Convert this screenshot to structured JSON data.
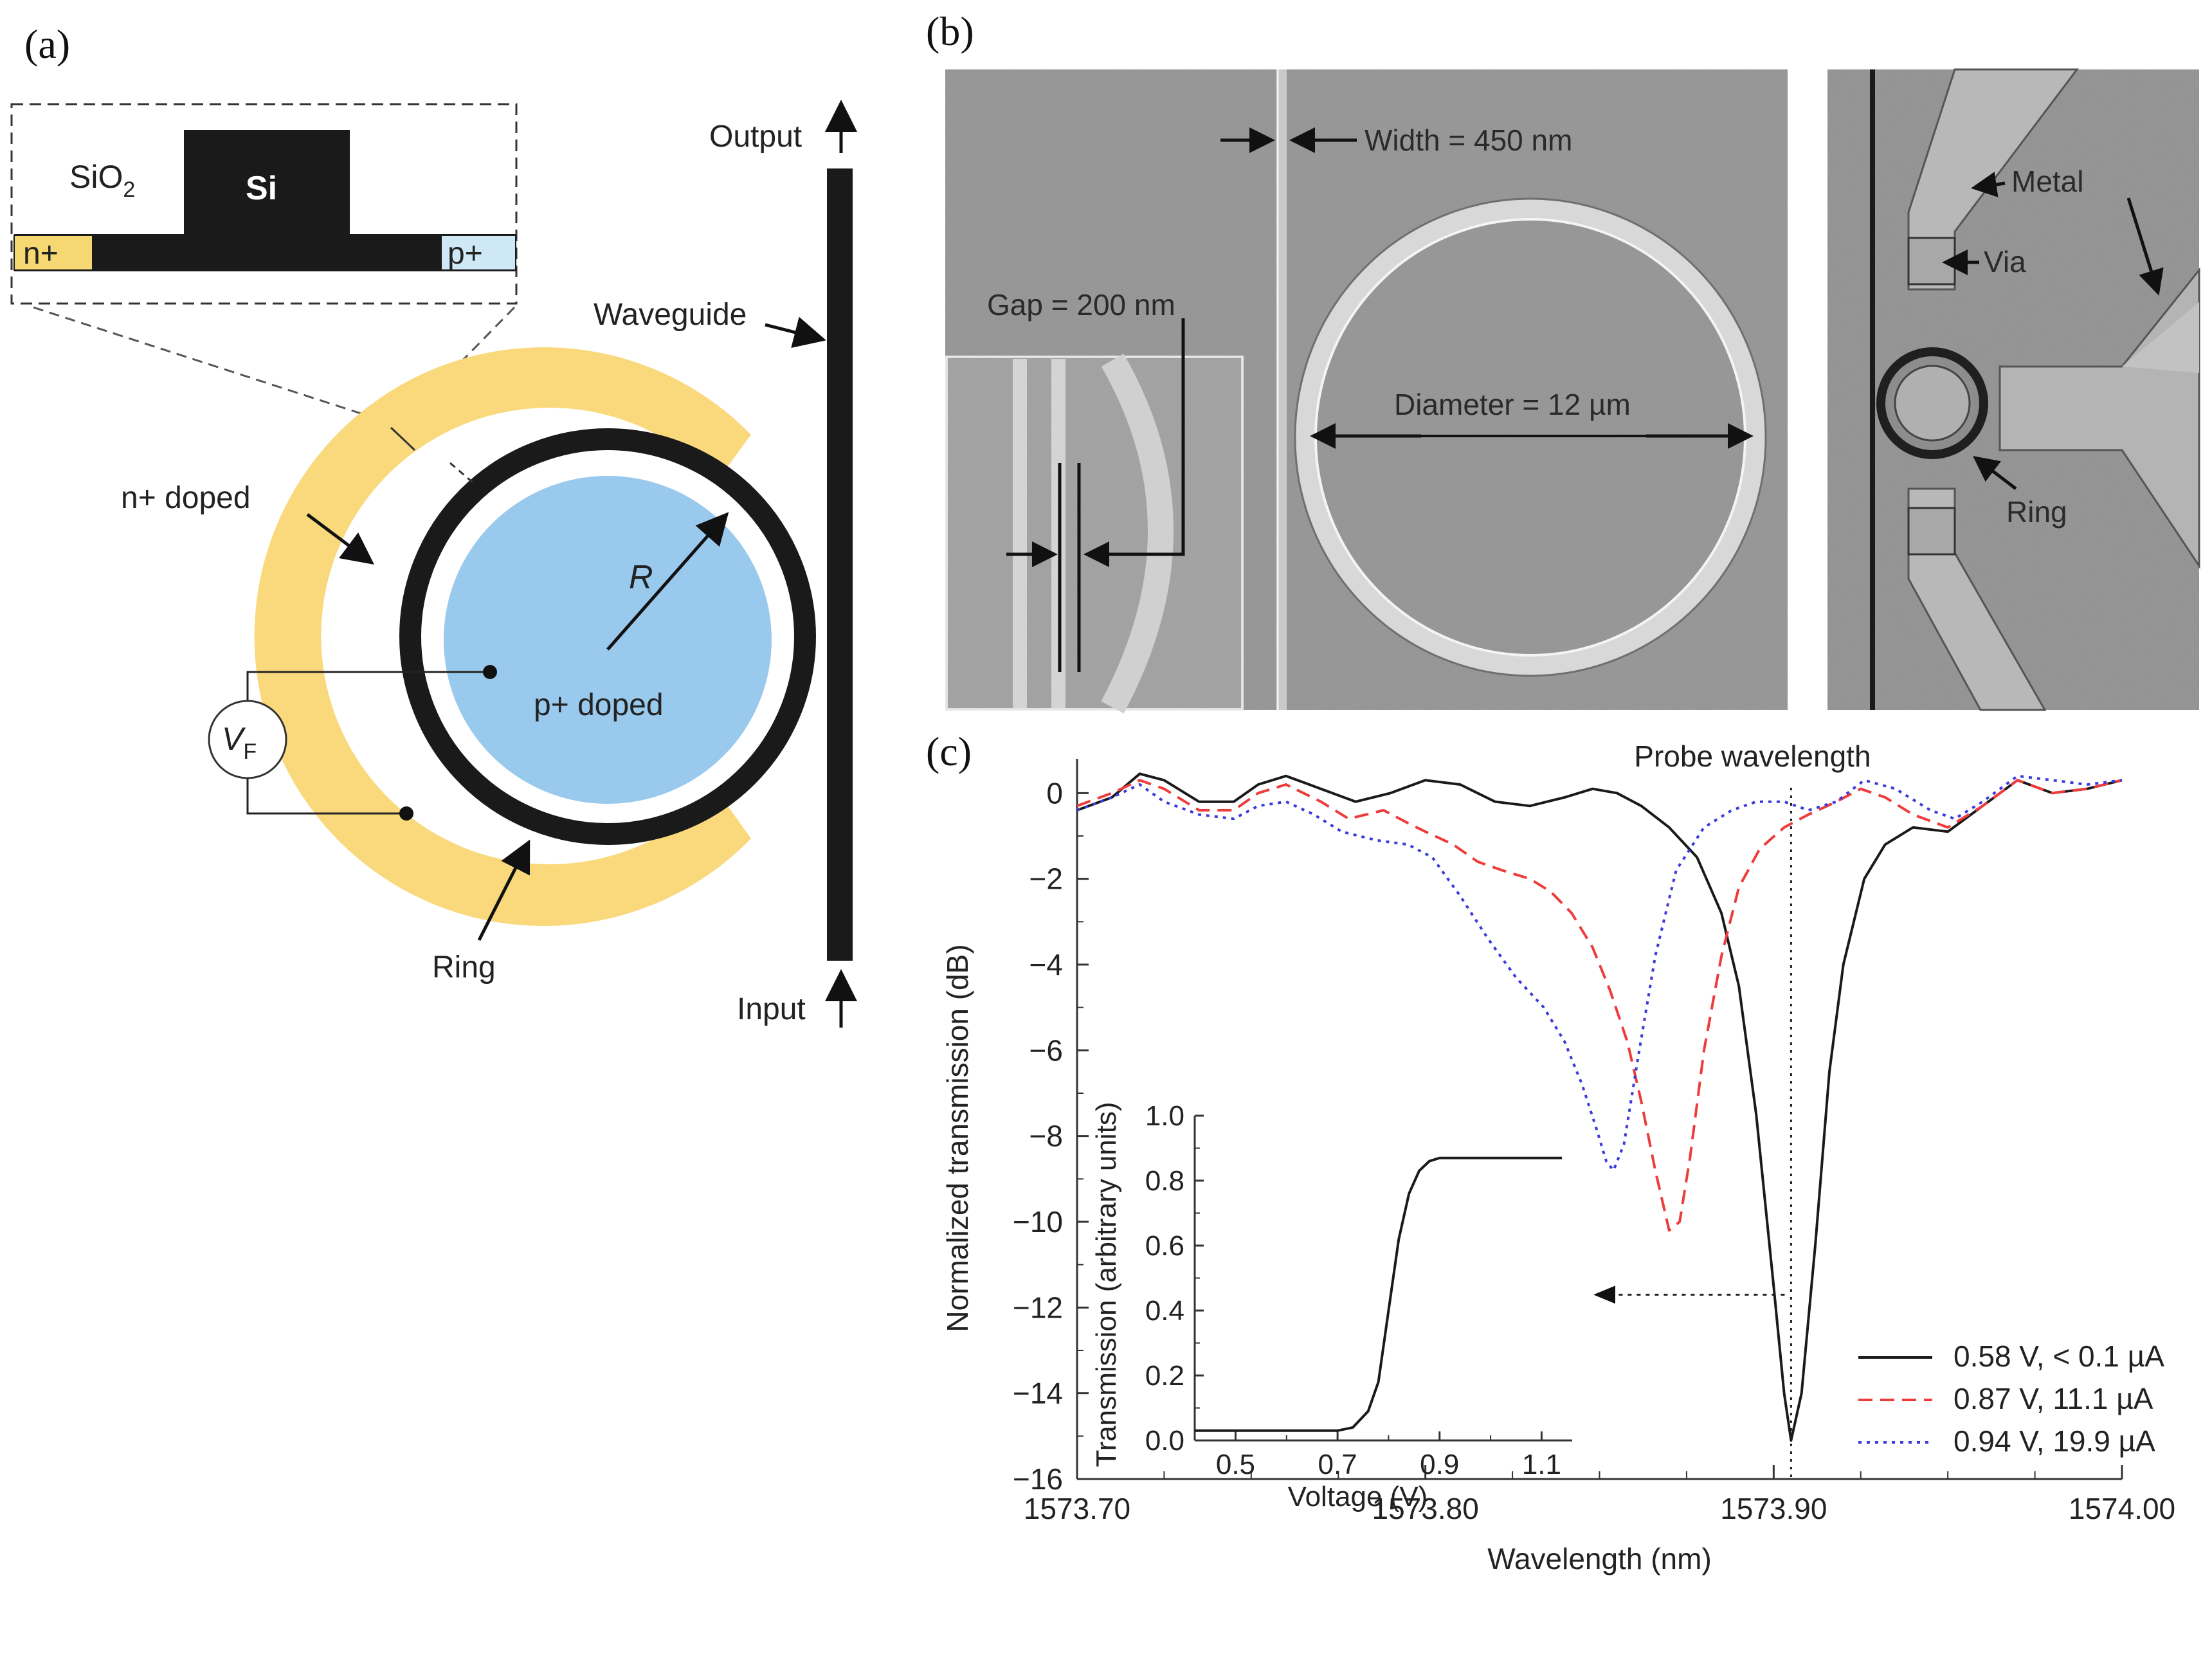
{
  "panels": {
    "a": "(a)",
    "b": "(b)",
    "c": "(c)"
  },
  "panel_a": {
    "cross_section": {
      "sio2_prefix": "SiO",
      "sio2_subscript": "2",
      "si": "Si",
      "n_plus": "n+",
      "p_plus": "p+"
    },
    "labels": {
      "output": "Output",
      "input": "Input",
      "waveguide": "Waveguide",
      "n_doped": "n+ doped",
      "p_doped": "p+ doped",
      "radius": "R",
      "ring": "Ring",
      "voltage_main": "V",
      "voltage_sub": "F"
    },
    "colors": {
      "n_doped": "#f9d97c",
      "p_doped": "#99c9ec",
      "silicon": "#1a1a1a",
      "p_plus_box": "#cfe8f6",
      "n_plus_box": "#f6d873"
    }
  },
  "panel_b": {
    "labels": {
      "width": "Width = 450 nm",
      "gap": "Gap = 200 nm",
      "diameter": "Diameter = 12 µm",
      "metal": "Metal",
      "via": "Via",
      "ring": "Ring"
    }
  },
  "chart_data": {
    "type": "line",
    "xlabel": "Wavelength (nm)",
    "ylabel": "Normalized transmission (dB)",
    "xlim": [
      1573.7,
      1574.0
    ],
    "ylim": [
      -16,
      0.8
    ],
    "x_ticks": [
      "1573.70",
      "1573.80",
      "1573.90",
      "1574.00"
    ],
    "y_ticks": [
      "0",
      "−2",
      "−4",
      "−6",
      "−8",
      "−10",
      "−12",
      "−14",
      "−16"
    ],
    "annotation": "Probe wavelength",
    "probe_wavelength": 1573.905,
    "legend_position": "bottom-right",
    "series": [
      {
        "name": "0.58 V, < 0.1 µA",
        "color": "#1a1a1a",
        "style": "solid",
        "points": [
          [
            1573.7,
            -0.4
          ],
          [
            1573.71,
            -0.1
          ],
          [
            1573.718,
            0.45
          ],
          [
            1573.725,
            0.3
          ],
          [
            1573.735,
            -0.2
          ],
          [
            1573.745,
            -0.2
          ],
          [
            1573.752,
            0.2
          ],
          [
            1573.76,
            0.4
          ],
          [
            1573.77,
            0.1
          ],
          [
            1573.78,
            -0.2
          ],
          [
            1573.79,
            0.0
          ],
          [
            1573.8,
            0.3
          ],
          [
            1573.81,
            0.2
          ],
          [
            1573.82,
            -0.2
          ],
          [
            1573.83,
            -0.3
          ],
          [
            1573.84,
            -0.1
          ],
          [
            1573.848,
            0.1
          ],
          [
            1573.855,
            0.0
          ],
          [
            1573.862,
            -0.3
          ],
          [
            1573.87,
            -0.8
          ],
          [
            1573.878,
            -1.5
          ],
          [
            1573.885,
            -2.8
          ],
          [
            1573.89,
            -4.5
          ],
          [
            1573.895,
            -7.5
          ],
          [
            1573.9,
            -11.5
          ],
          [
            1573.903,
            -14.0
          ],
          [
            1573.905,
            -15.1
          ],
          [
            1573.908,
            -14.0
          ],
          [
            1573.912,
            -10.5
          ],
          [
            1573.916,
            -6.5
          ],
          [
            1573.92,
            -4.0
          ],
          [
            1573.926,
            -2.0
          ],
          [
            1573.932,
            -1.2
          ],
          [
            1573.94,
            -0.8
          ],
          [
            1573.95,
            -0.9
          ],
          [
            1573.96,
            -0.3
          ],
          [
            1573.97,
            0.3
          ],
          [
            1573.98,
            0.0
          ],
          [
            1573.99,
            0.1
          ],
          [
            1574.0,
            0.3
          ]
        ]
      },
      {
        "name": "0.87 V, 11.1 µA",
        "color": "#ee3b3b",
        "style": "dashed",
        "points": [
          [
            1573.7,
            -0.3
          ],
          [
            1573.71,
            0.0
          ],
          [
            1573.718,
            0.3
          ],
          [
            1573.725,
            0.1
          ],
          [
            1573.735,
            -0.4
          ],
          [
            1573.745,
            -0.4
          ],
          [
            1573.752,
            0.0
          ],
          [
            1573.76,
            0.2
          ],
          [
            1573.77,
            -0.2
          ],
          [
            1573.778,
            -0.6
          ],
          [
            1573.788,
            -0.4
          ],
          [
            1573.795,
            -0.7
          ],
          [
            1573.8,
            -0.9
          ],
          [
            1573.808,
            -1.2
          ],
          [
            1573.815,
            -1.6
          ],
          [
            1573.822,
            -1.8
          ],
          [
            1573.83,
            -2.0
          ],
          [
            1573.836,
            -2.3
          ],
          [
            1573.842,
            -2.8
          ],
          [
            1573.848,
            -3.6
          ],
          [
            1573.853,
            -4.6
          ],
          [
            1573.858,
            -5.8
          ],
          [
            1573.862,
            -7.2
          ],
          [
            1573.866,
            -8.8
          ],
          [
            1573.87,
            -10.2
          ],
          [
            1573.873,
            -10.0
          ],
          [
            1573.876,
            -8.5
          ],
          [
            1573.88,
            -6.0
          ],
          [
            1573.885,
            -3.8
          ],
          [
            1573.89,
            -2.2
          ],
          [
            1573.896,
            -1.3
          ],
          [
            1573.903,
            -0.8
          ],
          [
            1573.91,
            -0.5
          ],
          [
            1573.918,
            -0.2
          ],
          [
            1573.925,
            0.1
          ],
          [
            1573.932,
            -0.1
          ],
          [
            1573.94,
            -0.5
          ],
          [
            1573.95,
            -0.8
          ],
          [
            1573.96,
            -0.3
          ],
          [
            1573.97,
            0.3
          ],
          [
            1573.98,
            0.0
          ],
          [
            1573.99,
            0.1
          ],
          [
            1574.0,
            0.3
          ]
        ]
      },
      {
        "name": "0.94 V, 19.9 µA",
        "color": "#3b3bdd",
        "style": "dotted",
        "points": [
          [
            1573.7,
            -0.4
          ],
          [
            1573.71,
            -0.1
          ],
          [
            1573.718,
            0.2
          ],
          [
            1573.725,
            -0.2
          ],
          [
            1573.735,
            -0.5
          ],
          [
            1573.745,
            -0.6
          ],
          [
            1573.752,
            -0.3
          ],
          [
            1573.76,
            -0.2
          ],
          [
            1573.768,
            -0.5
          ],
          [
            1573.776,
            -0.9
          ],
          [
            1573.786,
            -1.1
          ],
          [
            1573.795,
            -1.2
          ],
          [
            1573.802,
            -1.5
          ],
          [
            1573.81,
            -2.4
          ],
          [
            1573.818,
            -3.4
          ],
          [
            1573.826,
            -4.3
          ],
          [
            1573.834,
            -5.0
          ],
          [
            1573.84,
            -5.8
          ],
          [
            1573.845,
            -6.8
          ],
          [
            1573.849,
            -7.8
          ],
          [
            1573.852,
            -8.6
          ],
          [
            1573.854,
            -8.8
          ],
          [
            1573.857,
            -8.2
          ],
          [
            1573.861,
            -6.2
          ],
          [
            1573.866,
            -3.8
          ],
          [
            1573.872,
            -1.8
          ],
          [
            1573.88,
            -0.8
          ],
          [
            1573.888,
            -0.4
          ],
          [
            1573.895,
            -0.2
          ],
          [
            1573.903,
            -0.2
          ],
          [
            1573.91,
            -0.4
          ],
          [
            1573.918,
            -0.2
          ],
          [
            1573.926,
            0.3
          ],
          [
            1573.935,
            0.1
          ],
          [
            1573.945,
            -0.4
          ],
          [
            1573.952,
            -0.6
          ],
          [
            1573.96,
            -0.2
          ],
          [
            1573.97,
            0.4
          ],
          [
            1573.98,
            0.3
          ],
          [
            1573.99,
            0.2
          ],
          [
            1574.0,
            0.3
          ]
        ]
      }
    ],
    "inset": {
      "type": "line",
      "xlabel": "Voltage (V)",
      "ylabel": "Transmission (arbitrary units)",
      "xlim": [
        0.42,
        1.16
      ],
      "ylim": [
        0,
        1.0
      ],
      "x_ticks": [
        "0.5",
        "0.7",
        "0.9",
        "1.1"
      ],
      "y_ticks": [
        "0.0",
        "0.2",
        "0.4",
        "0.6",
        "0.8",
        "1.0"
      ],
      "points": [
        [
          0.42,
          0.03
        ],
        [
          0.5,
          0.03
        ],
        [
          0.6,
          0.03
        ],
        [
          0.7,
          0.03
        ],
        [
          0.73,
          0.04
        ],
        [
          0.76,
          0.09
        ],
        [
          0.78,
          0.18
        ],
        [
          0.8,
          0.4
        ],
        [
          0.82,
          0.62
        ],
        [
          0.84,
          0.76
        ],
        [
          0.86,
          0.83
        ],
        [
          0.88,
          0.86
        ],
        [
          0.9,
          0.87
        ],
        [
          0.95,
          0.87
        ],
        [
          1.05,
          0.87
        ],
        [
          1.14,
          0.87
        ]
      ]
    }
  }
}
